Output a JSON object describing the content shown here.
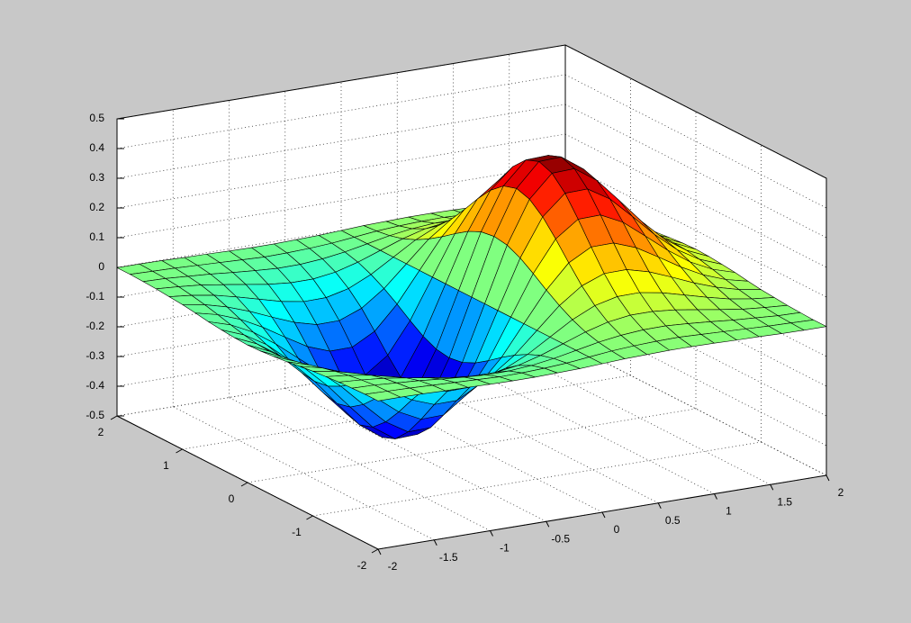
{
  "chart_data": {
    "type": "surface",
    "x": [
      -2,
      -1.8,
      -1.6,
      -1.4,
      -1.2,
      -1,
      -0.8,
      -0.6,
      -0.4,
      -0.2,
      0,
      0.2,
      0.4,
      0.6,
      0.8,
      1,
      1.2,
      1.4,
      1.6,
      1.8,
      2
    ],
    "y": [
      -2,
      -1.8,
      -1.6,
      -1.4,
      -1.2,
      -1,
      -0.8,
      -0.6,
      -0.4,
      -0.2,
      0,
      0.2,
      0.4,
      0.6,
      0.8,
      1,
      1.2,
      1.4,
      1.6,
      1.8,
      2
    ],
    "z": [
      [
        -0.001,
        -0.001,
        -0.002,
        -0.004,
        -0.005,
        -0.007,
        -0.008,
        -0.008,
        -0.006,
        -0.004,
        0,
        0.004,
        0.006,
        0.008,
        0.008,
        0.007,
        0.005,
        0.004,
        0.002,
        0.001,
        0.001
      ],
      [
        -0.001,
        -0.003,
        -0.005,
        -0.008,
        -0.011,
        -0.014,
        -0.017,
        -0.016,
        -0.013,
        -0.008,
        0,
        0.008,
        0.013,
        0.016,
        0.017,
        0.014,
        0.011,
        0.008,
        0.005,
        0.003,
        0.001
      ],
      [
        -0.003,
        -0.005,
        -0.01,
        -0.015,
        -0.022,
        -0.028,
        -0.033,
        -0.032,
        -0.026,
        -0.015,
        0,
        0.015,
        0.026,
        0.032,
        0.033,
        0.028,
        0.022,
        0.015,
        0.01,
        0.005,
        0.003
      ],
      [
        -0.005,
        -0.01,
        -0.017,
        -0.028,
        -0.04,
        -0.052,
        -0.059,
        -0.059,
        -0.048,
        -0.027,
        0,
        0.027,
        0.048,
        0.059,
        0.059,
        0.052,
        0.04,
        0.028,
        0.017,
        0.01,
        0.005
      ],
      [
        -0.009,
        -0.017,
        -0.029,
        -0.047,
        -0.067,
        -0.087,
        -0.1,
        -0.099,
        -0.081,
        -0.046,
        0,
        0.046,
        0.081,
        0.099,
        0.1,
        0.087,
        0.067,
        0.047,
        0.029,
        0.017,
        0.009
      ],
      [
        -0.013,
        -0.026,
        -0.046,
        -0.073,
        -0.105,
        -0.135,
        -0.155,
        -0.154,
        -0.125,
        -0.071,
        0,
        0.071,
        0.125,
        0.154,
        0.155,
        0.135,
        0.105,
        0.073,
        0.046,
        0.026,
        0.013
      ],
      [
        -0.019,
        -0.037,
        -0.065,
        -0.104,
        -0.15,
        -0.194,
        -0.222,
        -0.221,
        -0.18,
        -0.101,
        0,
        0.101,
        0.18,
        0.221,
        0.222,
        0.194,
        0.15,
        0.104,
        0.065,
        0.037,
        0.019
      ],
      [
        -0.026,
        -0.049,
        -0.086,
        -0.138,
        -0.198,
        -0.257,
        -0.294,
        -0.292,
        -0.238,
        -0.134,
        0,
        0.134,
        0.238,
        0.292,
        0.294,
        0.257,
        0.198,
        0.138,
        0.086,
        0.049,
        0.026
      ],
      [
        -0.031,
        -0.06,
        -0.105,
        -0.168,
        -0.242,
        -0.313,
        -0.359,
        -0.357,
        -0.29,
        -0.164,
        0,
        0.164,
        0.29,
        0.357,
        0.359,
        0.313,
        0.242,
        0.168,
        0.105,
        0.06,
        0.031
      ],
      [
        -0.035,
        -0.068,
        -0.119,
        -0.19,
        -0.273,
        -0.353,
        -0.405,
        -0.402,
        -0.327,
        -0.185,
        0,
        0.185,
        0.327,
        0.402,
        0.405,
        0.353,
        0.273,
        0.19,
        0.119,
        0.068,
        0.035
      ],
      [
        -0.037,
        -0.071,
        -0.124,
        -0.197,
        -0.284,
        -0.368,
        -0.422,
        -0.419,
        -0.341,
        -0.192,
        0,
        0.192,
        0.341,
        0.419,
        0.422,
        0.368,
        0.284,
        0.197,
        0.124,
        0.071,
        0.037
      ],
      [
        -0.035,
        -0.068,
        -0.119,
        -0.19,
        -0.273,
        -0.353,
        -0.405,
        -0.402,
        -0.327,
        -0.185,
        0,
        0.185,
        0.327,
        0.402,
        0.405,
        0.353,
        0.273,
        0.19,
        0.119,
        0.068,
        0.035
      ],
      [
        -0.031,
        -0.06,
        -0.105,
        -0.168,
        -0.242,
        -0.313,
        -0.359,
        -0.357,
        -0.29,
        -0.164,
        0,
        0.164,
        0.29,
        0.357,
        0.359,
        0.313,
        0.242,
        0.168,
        0.105,
        0.06,
        0.031
      ],
      [
        -0.026,
        -0.049,
        -0.086,
        -0.138,
        -0.198,
        -0.257,
        -0.294,
        -0.292,
        -0.238,
        -0.134,
        0,
        0.134,
        0.238,
        0.292,
        0.294,
        0.257,
        0.198,
        0.138,
        0.086,
        0.049,
        0.026
      ],
      [
        -0.019,
        -0.037,
        -0.065,
        -0.104,
        -0.15,
        -0.194,
        -0.222,
        -0.221,
        -0.18,
        -0.101,
        0,
        0.101,
        0.18,
        0.221,
        0.222,
        0.194,
        0.15,
        0.104,
        0.065,
        0.037,
        0.019
      ],
      [
        -0.013,
        -0.026,
        -0.046,
        -0.073,
        -0.105,
        -0.135,
        -0.155,
        -0.154,
        -0.125,
        -0.071,
        0,
        0.071,
        0.125,
        0.154,
        0.155,
        0.135,
        0.105,
        0.073,
        0.046,
        0.026,
        0.013
      ],
      [
        -0.009,
        -0.017,
        -0.029,
        -0.047,
        -0.067,
        -0.087,
        -0.1,
        -0.099,
        -0.081,
        -0.046,
        0,
        0.046,
        0.081,
        0.099,
        0.1,
        0.087,
        0.067,
        0.047,
        0.029,
        0.017,
        0.009
      ],
      [
        -0.005,
        -0.01,
        -0.017,
        -0.028,
        -0.04,
        -0.052,
        -0.059,
        -0.059,
        -0.048,
        -0.027,
        0,
        0.027,
        0.048,
        0.059,
        0.059,
        0.052,
        0.04,
        0.028,
        0.017,
        0.01,
        0.005
      ],
      [
        -0.003,
        -0.005,
        -0.01,
        -0.015,
        -0.022,
        -0.028,
        -0.033,
        -0.032,
        -0.026,
        -0.015,
        0,
        0.015,
        0.026,
        0.032,
        0.033,
        0.028,
        0.022,
        0.015,
        0.01,
        0.005,
        0.003
      ],
      [
        -0.001,
        -0.003,
        -0.005,
        -0.008,
        -0.011,
        -0.014,
        -0.017,
        -0.016,
        -0.013,
        -0.008,
        0,
        0.008,
        0.013,
        0.016,
        0.017,
        0.014,
        0.011,
        0.008,
        0.005,
        0.003,
        0.001
      ],
      [
        -0.001,
        -0.001,
        -0.002,
        -0.004,
        -0.005,
        -0.007,
        -0.008,
        -0.008,
        -0.006,
        -0.004,
        0,
        0.004,
        0.006,
        0.008,
        0.008,
        0.007,
        0.005,
        0.004,
        0.002,
        0.001,
        0.001
      ]
    ],
    "xlim": [
      -2,
      2
    ],
    "ylim": [
      -2,
      2
    ],
    "zlim": [
      -0.5,
      0.5
    ],
    "xticks": [
      -2,
      -1.5,
      -1,
      -0.5,
      0,
      0.5,
      1,
      1.5,
      2
    ],
    "yticks": [
      -2,
      -1,
      0,
      1,
      2
    ],
    "zticks": [
      -0.5,
      -0.4,
      -0.3,
      -0.2,
      -0.1,
      0,
      0.1,
      0.2,
      0.3,
      0.4,
      0.5
    ],
    "grid": true,
    "colormap": "jet",
    "edge_color": "#000000"
  }
}
